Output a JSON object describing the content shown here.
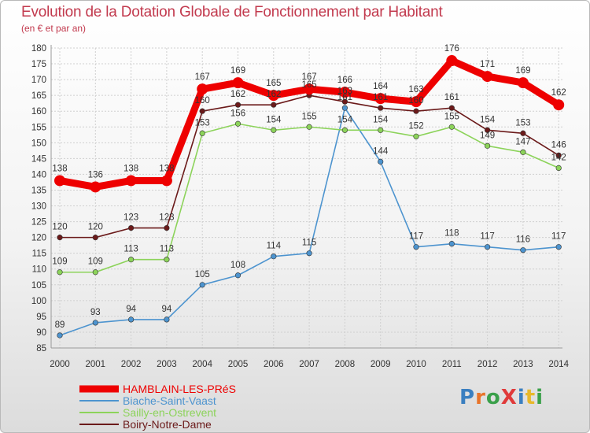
{
  "title": "Evolution de la Dotation Globale de Fonctionnement par Habitant",
  "subtitle": "(en € et par an)",
  "logo": {
    "text": "ProXiti",
    "letter_colors": [
      "#3a7fc0",
      "#e8742a",
      "#3aa04a",
      "#e03a3a",
      "#3a7fc0",
      "#e8b82a",
      "#3aa04a"
    ]
  },
  "chart_data": {
    "type": "line",
    "title": "Evolution de la Dotation Globale de Fonctionnement par Habitant",
    "ylabel": "(en € et par an)",
    "xlabel": "",
    "ylim": [
      85,
      180
    ],
    "ytick_step": 5,
    "categories": [
      "2000",
      "2001",
      "2002",
      "2003",
      "2004",
      "2005",
      "2006",
      "2007",
      "2008",
      "2009",
      "2010",
      "2011",
      "2012",
      "2013",
      "2014"
    ],
    "series": [
      {
        "name": "HAMBLAIN-LES-PRéS",
        "color": "#ee0000",
        "values": [
          138,
          136,
          138,
          138,
          167,
          169,
          165,
          167,
          166,
          164,
          163,
          176,
          171,
          169,
          162
        ]
      },
      {
        "name": "Biache-Saint-Vaast",
        "color": "#4d94cf",
        "values": [
          89,
          93,
          94,
          94,
          105,
          108,
          114,
          115,
          161,
          144,
          117,
          118,
          117,
          116,
          117
        ]
      },
      {
        "name": "Sailly-en-Ostrevent",
        "color": "#8cd35a",
        "values": [
          109,
          109,
          113,
          113,
          153,
          156,
          154,
          155,
          154,
          154,
          152,
          155,
          149,
          147,
          142
        ]
      },
      {
        "name": "Boiry-Notre-Dame",
        "color": "#6b1a1a",
        "values": [
          120,
          120,
          123,
          123,
          160,
          162,
          162,
          165,
          163,
          161,
          160,
          161,
          154,
          153,
          146
        ]
      }
    ]
  }
}
